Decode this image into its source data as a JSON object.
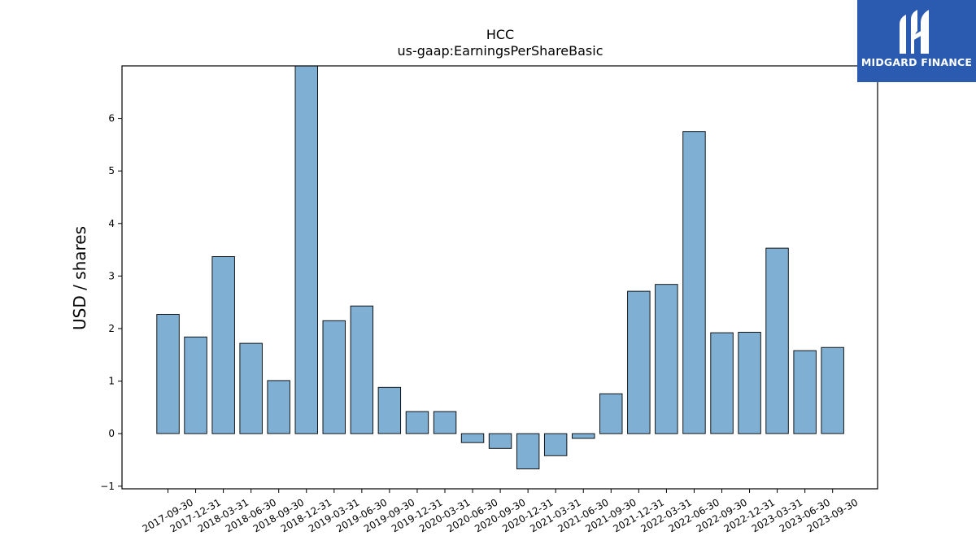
{
  "logo": {
    "text": "MIDGARD FINANCE"
  },
  "colors": {
    "bar_fill": "#7fb0d4",
    "bar_edge": "#000000",
    "logo_bg": "#2b5bb0"
  },
  "chart_data": {
    "type": "bar",
    "title": "HCC",
    "subtitle": "us-gaap:EarningsPerShareBasic",
    "xlabel": "",
    "ylabel": "USD / shares",
    "ylim": [
      -1.05,
      7.0
    ],
    "yticks": [
      -1,
      0,
      1,
      2,
      3,
      4,
      5,
      6
    ],
    "grid": false,
    "categories": [
      "2017-09-30",
      "2017-12-31",
      "2018-03-31",
      "2018-06-30",
      "2018-09-30",
      "2018-12-31",
      "2019-03-31",
      "2019-06-30",
      "2019-09-30",
      "2019-12-31",
      "2020-03-31",
      "2020-06-30",
      "2020-09-30",
      "2020-12-31",
      "2021-03-31",
      "2021-06-30",
      "2021-09-30",
      "2021-12-31",
      "2022-03-31",
      "2022-06-30",
      "2022-09-30",
      "2022-12-31",
      "2023-03-31",
      "2023-06-30",
      "2023-09-30"
    ],
    "values": [
      2.27,
      1.84,
      3.37,
      1.72,
      1.01,
      7.5,
      2.15,
      2.43,
      0.88,
      0.42,
      0.42,
      -0.17,
      -0.28,
      -0.67,
      -0.42,
      -0.09,
      0.76,
      2.71,
      2.84,
      5.75,
      1.92,
      1.93,
      3.53,
      1.58,
      1.64
    ]
  }
}
